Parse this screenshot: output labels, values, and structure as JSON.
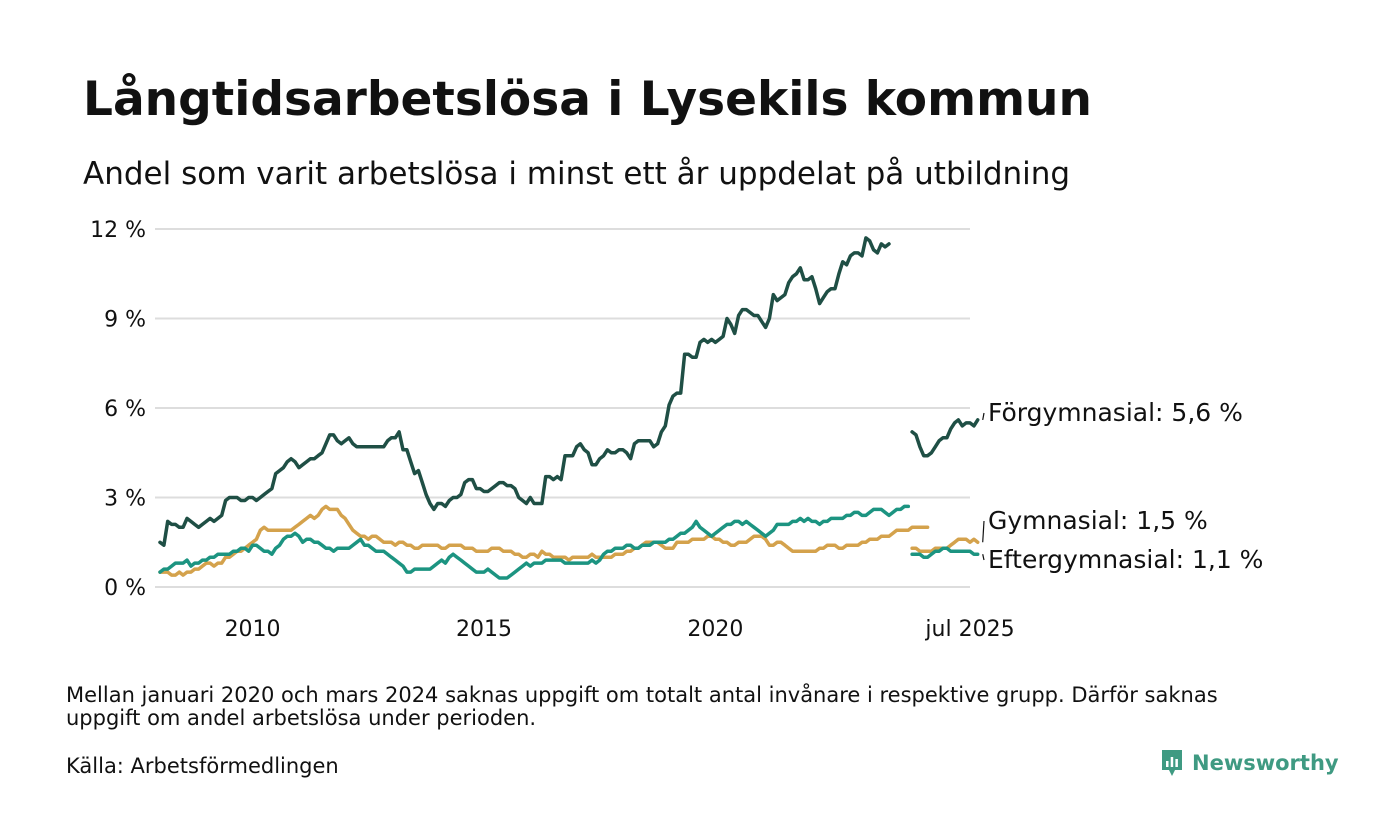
{
  "title": "Långtidsarbetslösa i Lysekils kommun",
  "subtitle": "Andel som varit arbetslösa i minst ett år uppdelat på utbildning",
  "note": "Mellan januari 2020 och mars 2024 saknas uppgift om totalt antal invånare i respektive grupp. Därför saknas uppgift om andel arbetslösa under perioden.",
  "source": "Källa: Arbetsförmedlingen",
  "brand": "Newsworthy",
  "colors": {
    "forgymnasial": "#1f4f45",
    "gymnasial": "#d4a24c",
    "eftergymnasial": "#1c9481",
    "grid": "#dddddd",
    "brand": "#3f9a82"
  },
  "chart_data": {
    "type": "line",
    "y_unit": "%",
    "ylim": [
      0,
      12
    ],
    "yticks": [
      {
        "value": 0,
        "label": "0 %"
      },
      {
        "value": 3,
        "label": "3 %"
      },
      {
        "value": 6,
        "label": "6 %"
      },
      {
        "value": 9,
        "label": "9 %"
      },
      {
        "value": 12,
        "label": "12 %"
      }
    ],
    "xlim": [
      "2008-01",
      "2025-07"
    ],
    "xticks": [
      {
        "value": "2010-01",
        "label": "2010"
      },
      {
        "value": "2015-01",
        "label": "2015"
      },
      {
        "value": "2020-01",
        "label": "2020"
      },
      {
        "value": "2025-07",
        "label": "jul 2025"
      }
    ],
    "grid": true,
    "series": [
      {
        "name": "Förgymnasial",
        "end_label": "Förgymnasial: 5,6 %",
        "color": "#1f4f45",
        "segments": [
          {
            "start": "2008-01",
            "values": [
              1.5,
              1.4,
              2.2,
              2.1,
              2.1,
              2.0,
              2.0,
              2.3,
              2.2,
              2.1,
              2.0,
              2.1,
              2.2,
              2.3,
              2.2,
              2.3,
              2.4,
              2.9,
              3.0,
              3.0,
              3.0,
              2.9,
              2.9,
              3.0,
              3.0,
              2.9,
              3.0,
              3.1,
              3.2,
              3.3,
              3.8,
              3.9,
              4.0,
              4.2,
              4.3,
              4.2,
              4.0,
              4.1,
              4.2,
              4.3,
              4.3,
              4.4,
              4.5,
              4.8,
              5.1,
              5.1,
              4.9,
              4.8,
              4.9,
              5.0,
              4.8,
              4.7,
              4.7,
              4.7,
              4.7,
              4.7,
              4.7,
              4.7,
              4.7,
              4.9,
              5.0,
              5.0,
              5.2,
              4.6,
              4.6,
              4.2,
              3.8,
              3.9,
              3.5,
              3.1,
              2.8,
              2.6,
              2.8,
              2.8,
              2.7,
              2.9,
              3.0,
              3.0,
              3.1,
              3.5,
              3.6,
              3.6,
              3.3,
              3.3,
              3.2,
              3.2,
              3.3,
              3.4,
              3.5,
              3.5,
              3.4,
              3.4,
              3.3,
              3.0,
              2.9,
              2.8,
              3.0,
              2.8,
              2.8,
              2.8,
              3.7,
              3.7,
              3.6,
              3.7,
              3.6,
              4.4,
              4.4,
              4.4,
              4.7,
              4.8,
              4.6,
              4.5,
              4.1,
              4.1,
              4.3,
              4.4,
              4.6,
              4.5,
              4.5,
              4.6,
              4.6,
              4.5,
              4.3,
              4.8,
              4.9,
              4.9,
              4.9,
              4.9,
              4.7,
              4.8,
              5.2,
              5.4,
              6.1,
              6.4,
              6.5,
              6.5,
              7.8,
              7.8,
              7.7,
              7.7,
              8.2,
              8.3,
              8.2,
              8.3,
              8.2,
              8.3,
              8.4,
              9.0,
              8.8,
              8.5,
              9.1,
              9.3,
              9.3,
              9.2,
              9.1,
              9.1,
              8.9,
              8.7,
              9.0,
              9.8,
              9.6,
              9.7,
              9.8,
              10.2,
              10.4,
              10.5,
              10.7,
              10.3,
              10.3,
              10.4,
              10.0,
              9.5,
              9.7,
              9.9,
              10.0,
              10.0,
              10.5,
              10.9,
              10.8,
              11.1,
              11.2,
              11.2,
              11.1,
              11.7,
              11.6,
              11.3,
              11.2,
              11.5,
              11.4,
              11.5
            ]
          },
          {
            "start": "2024-04",
            "values": [
              5.2,
              5.1,
              4.7,
              4.4,
              4.4,
              4.5,
              4.7,
              4.9,
              5.0,
              5.0,
              5.3,
              5.5,
              5.6,
              5.4,
              5.5,
              5.5,
              5.4,
              5.6
            ]
          }
        ]
      },
      {
        "name": "Gymnasial",
        "end_label": "Gymnasial: 1,5 %",
        "color": "#d4a24c",
        "segments": [
          {
            "start": "2008-01",
            "values": [
              0.5,
              0.5,
              0.5,
              0.4,
              0.4,
              0.5,
              0.4,
              0.5,
              0.5,
              0.6,
              0.6,
              0.7,
              0.8,
              0.8,
              0.7,
              0.8,
              0.8,
              1.0,
              1.0,
              1.1,
              1.2,
              1.2,
              1.3,
              1.4,
              1.5,
              1.6,
              1.9,
              2.0,
              1.9,
              1.9,
              1.9,
              1.9,
              1.9,
              1.9,
              1.9,
              2.0,
              2.1,
              2.2,
              2.3,
              2.4,
              2.3,
              2.4,
              2.6,
              2.7,
              2.6,
              2.6,
              2.6,
              2.4,
              2.3,
              2.1,
              1.9,
              1.8,
              1.7,
              1.7,
              1.6,
              1.7,
              1.7,
              1.6,
              1.5,
              1.5,
              1.5,
              1.4,
              1.5,
              1.5,
              1.4,
              1.4,
              1.3,
              1.3,
              1.4,
              1.4,
              1.4,
              1.4,
              1.4,
              1.3,
              1.3,
              1.4,
              1.4,
              1.4,
              1.4,
              1.3,
              1.3,
              1.3,
              1.2,
              1.2,
              1.2,
              1.2,
              1.3,
              1.3,
              1.3,
              1.2,
              1.2,
              1.2,
              1.1,
              1.1,
              1.0,
              1.0,
              1.1,
              1.1,
              1.0,
              1.2,
              1.1,
              1.1,
              1.0,
              1.0,
              1.0,
              1.0,
              0.9,
              1.0,
              1.0,
              1.0,
              1.0,
              1.0,
              1.1,
              1.0,
              1.0,
              1.0,
              1.0,
              1.0,
              1.1,
              1.1,
              1.1,
              1.2,
              1.2,
              1.3,
              1.3,
              1.4,
              1.5,
              1.5,
              1.5,
              1.5,
              1.4,
              1.3,
              1.3,
              1.3,
              1.5,
              1.5,
              1.5,
              1.5,
              1.6,
              1.6,
              1.6,
              1.6,
              1.7,
              1.7,
              1.6,
              1.6,
              1.5,
              1.5,
              1.4,
              1.4,
              1.5,
              1.5,
              1.5,
              1.6,
              1.7,
              1.7,
              1.7,
              1.6,
              1.4,
              1.4,
              1.5,
              1.5,
              1.4,
              1.3,
              1.2,
              1.2,
              1.2,
              1.2,
              1.2,
              1.2,
              1.2,
              1.3,
              1.3,
              1.4,
              1.4,
              1.4,
              1.3,
              1.3,
              1.4,
              1.4,
              1.4,
              1.4,
              1.5,
              1.5,
              1.6,
              1.6,
              1.6,
              1.7,
              1.7,
              1.7,
              1.8,
              1.9,
              1.9,
              1.9,
              1.9,
              2.0,
              2.0,
              2.0,
              2.0,
              2.0
            ]
          },
          {
            "start": "2024-04",
            "values": [
              1.3,
              1.3,
              1.2,
              1.2,
              1.2,
              1.2,
              1.3,
              1.3,
              1.3,
              1.3,
              1.4,
              1.5,
              1.6,
              1.6,
              1.6,
              1.5,
              1.6,
              1.5
            ]
          }
        ]
      },
      {
        "name": "Eftergymnasial",
        "end_label": "Eftergymnasial: 1,1 %",
        "color": "#1c9481",
        "segments": [
          {
            "start": "2008-01",
            "values": [
              0.5,
              0.6,
              0.6,
              0.7,
              0.8,
              0.8,
              0.8,
              0.9,
              0.7,
              0.8,
              0.8,
              0.9,
              0.9,
              1.0,
              1.0,
              1.1,
              1.1,
              1.1,
              1.1,
              1.2,
              1.2,
              1.3,
              1.3,
              1.2,
              1.4,
              1.4,
              1.3,
              1.2,
              1.2,
              1.1,
              1.3,
              1.4,
              1.6,
              1.7,
              1.7,
              1.8,
              1.7,
              1.5,
              1.6,
              1.6,
              1.5,
              1.5,
              1.4,
              1.3,
              1.3,
              1.2,
              1.3,
              1.3,
              1.3,
              1.3,
              1.4,
              1.5,
              1.6,
              1.4,
              1.4,
              1.3,
              1.2,
              1.2,
              1.2,
              1.1,
              1.0,
              0.9,
              0.8,
              0.7,
              0.5,
              0.5,
              0.6,
              0.6,
              0.6,
              0.6,
              0.6,
              0.7,
              0.8,
              0.9,
              0.8,
              1.0,
              1.1,
              1.0,
              0.9,
              0.8,
              0.7,
              0.6,
              0.5,
              0.5,
              0.5,
              0.6,
              0.5,
              0.4,
              0.3,
              0.3,
              0.3,
              0.4,
              0.5,
              0.6,
              0.7,
              0.8,
              0.7,
              0.8,
              0.8,
              0.8,
              0.9,
              0.9,
              0.9,
              0.9,
              0.9,
              0.8,
              0.8,
              0.8,
              0.8,
              0.8,
              0.8,
              0.8,
              0.9,
              0.8,
              0.9,
              1.1,
              1.2,
              1.2,
              1.3,
              1.3,
              1.3,
              1.4,
              1.4,
              1.3,
              1.3,
              1.4,
              1.4,
              1.4,
              1.5,
              1.5,
              1.5,
              1.5,
              1.6,
              1.6,
              1.7,
              1.8,
              1.8,
              1.9,
              2.0,
              2.2,
              2.0,
              1.9,
              1.8,
              1.7,
              1.8,
              1.9,
              2.0,
              2.1,
              2.1,
              2.2,
              2.2,
              2.1,
              2.2,
              2.1,
              2.0,
              1.9,
              1.8,
              1.7,
              1.8,
              1.9,
              2.1,
              2.1,
              2.1,
              2.1,
              2.2,
              2.2,
              2.3,
              2.2,
              2.3,
              2.2,
              2.2,
              2.1,
              2.2,
              2.2,
              2.3,
              2.3,
              2.3,
              2.3,
              2.4,
              2.4,
              2.5,
              2.5,
              2.4,
              2.4,
              2.5,
              2.6,
              2.6,
              2.6,
              2.5,
              2.4,
              2.5,
              2.6,
              2.6,
              2.7,
              2.7
            ]
          },
          {
            "start": "2024-04",
            "values": [
              1.1,
              1.1,
              1.1,
              1.0,
              1.0,
              1.1,
              1.2,
              1.2,
              1.3,
              1.3,
              1.2,
              1.2,
              1.2,
              1.2,
              1.2,
              1.2,
              1.1,
              1.1
            ]
          }
        ]
      }
    ]
  }
}
